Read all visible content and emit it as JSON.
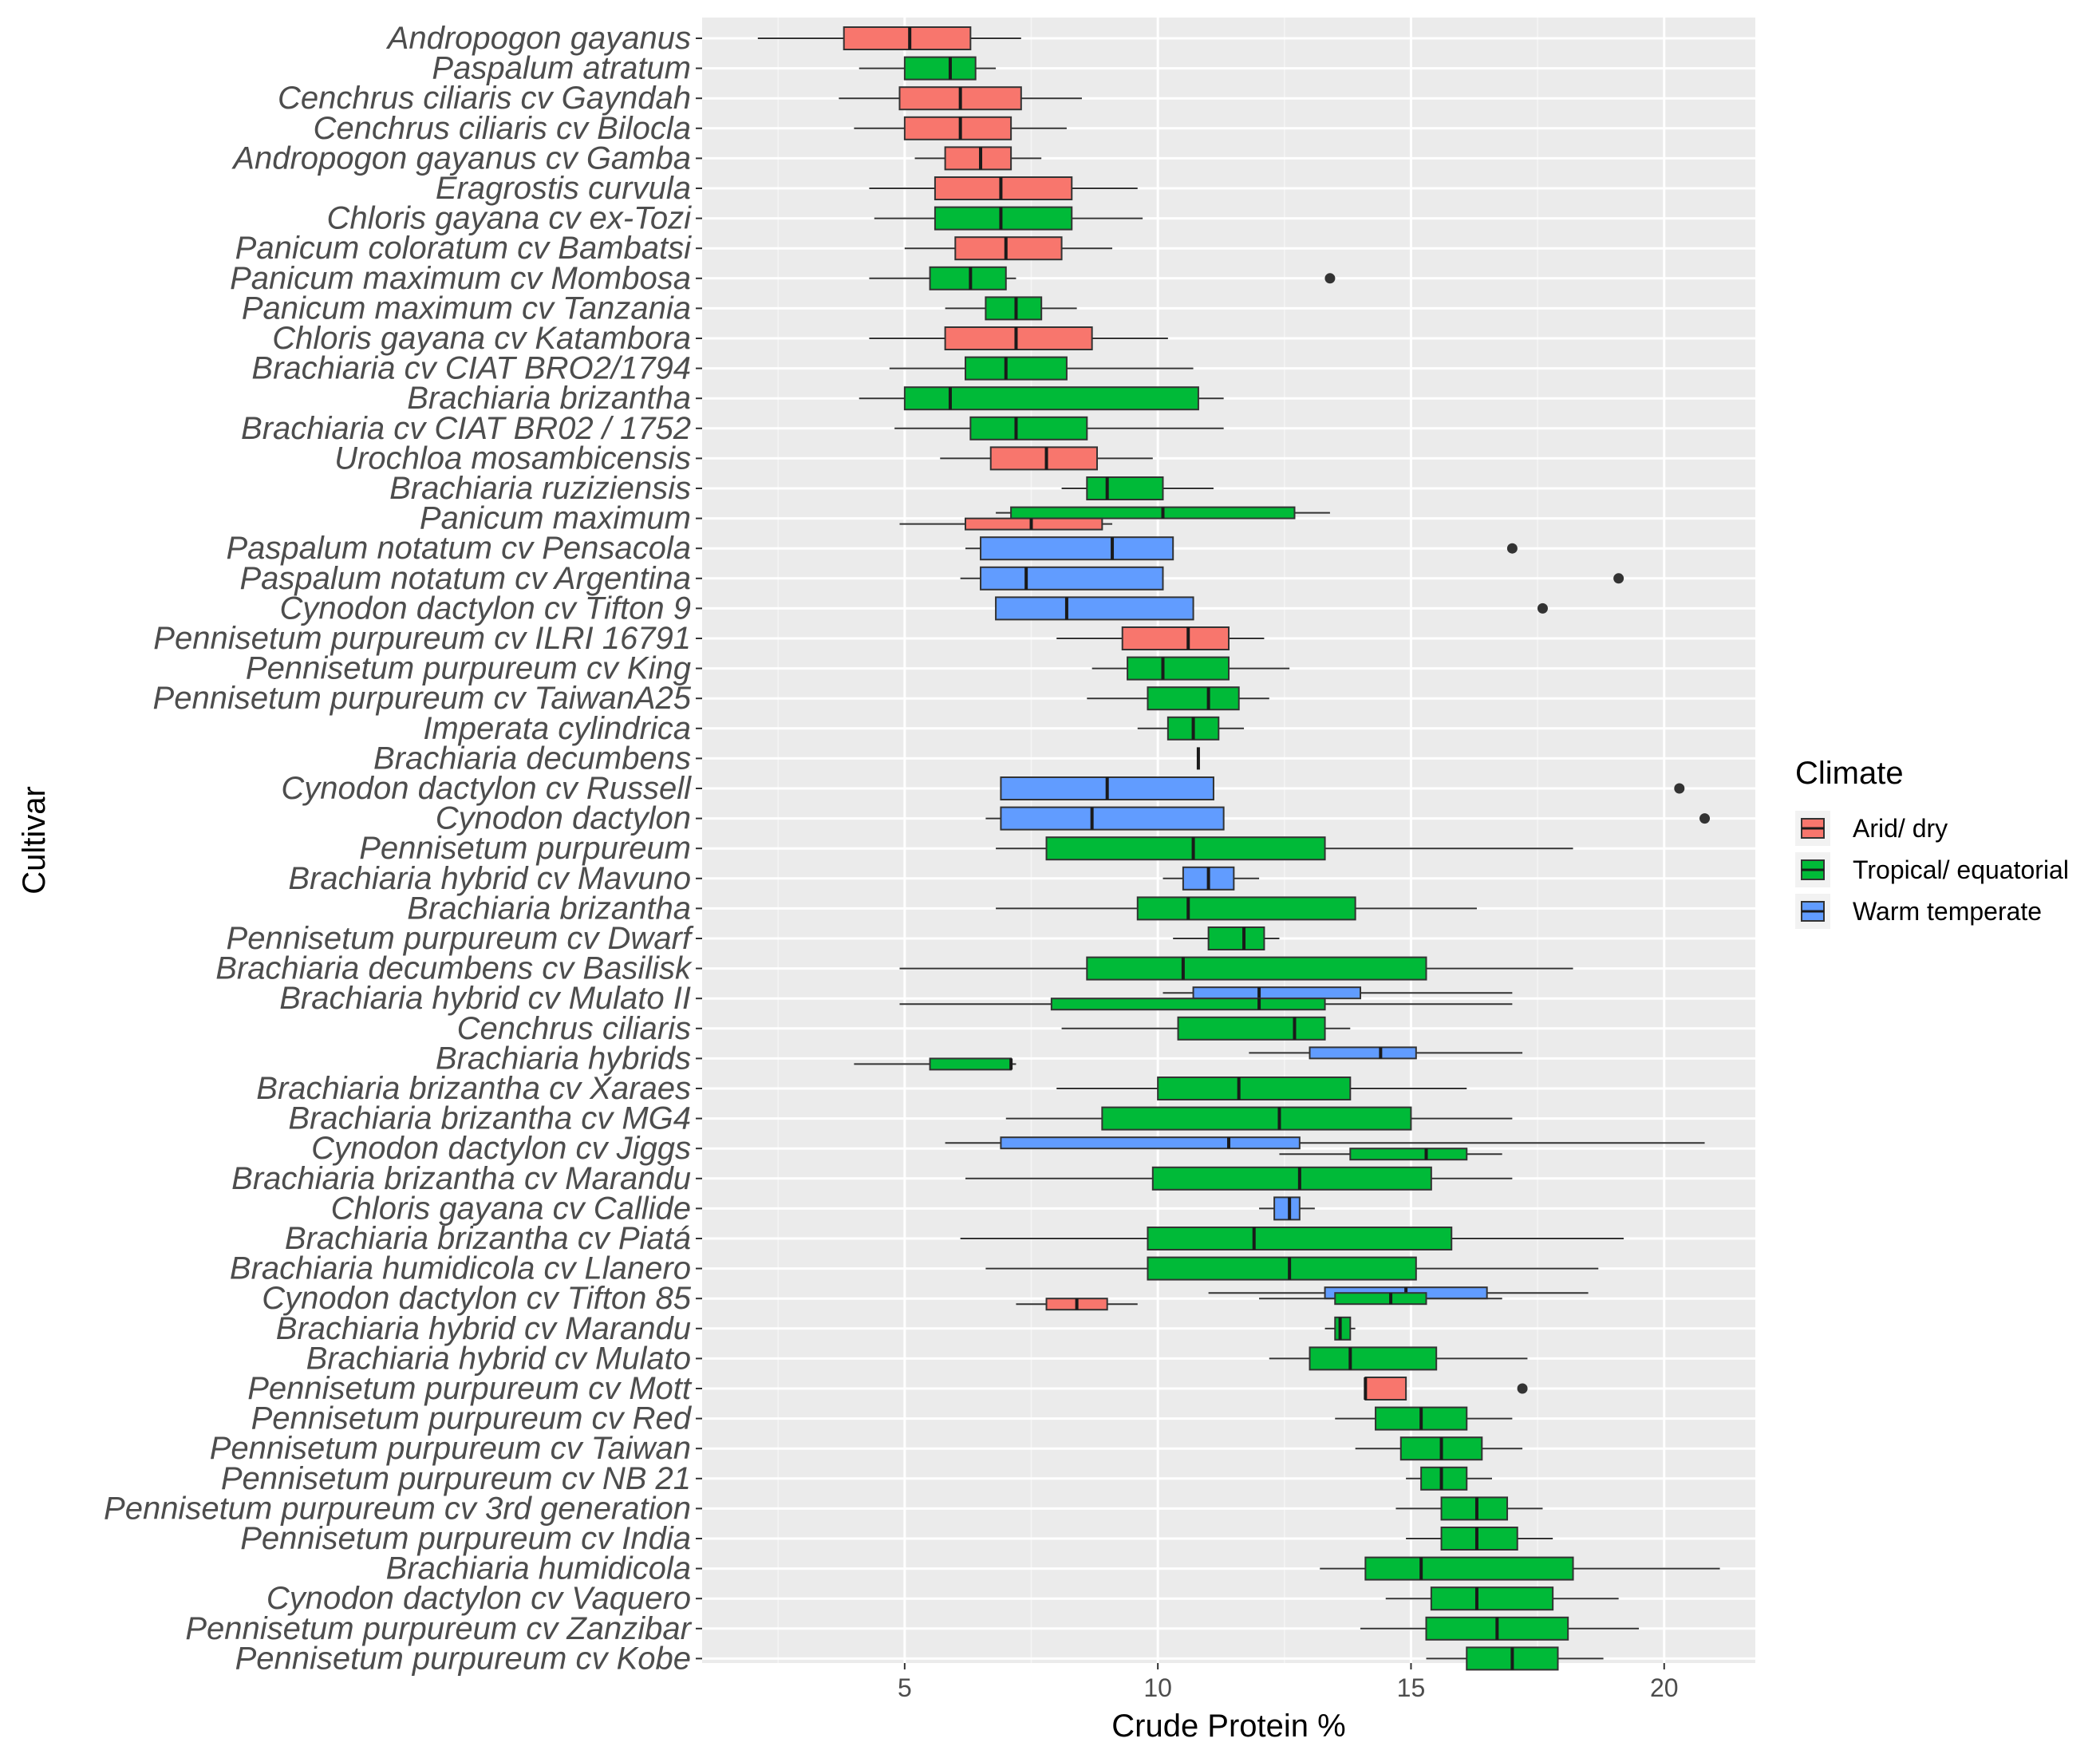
{
  "chart_data": {
    "type": "boxplot",
    "orientation": "horizontal",
    "xlabel": "Crude Protein %",
    "ylabel": "Cultivar",
    "xlim": [
      1.0,
      21.8
    ],
    "xticks": [
      5,
      10,
      15,
      20
    ],
    "grid": true,
    "legend": {
      "title": "Climate",
      "placement": "right",
      "entries": [
        {
          "key": "arid",
          "label": "Arid/ dry",
          "color": "#F8766D"
        },
        {
          "key": "tropical",
          "label": "Tropical/ equatorial",
          "color": "#00BA38"
        },
        {
          "key": "warm",
          "label": "Warm temperate",
          "color": "#619CFF"
        }
      ]
    },
    "colors": {
      "panel": "#EBEBEB",
      "grid_major": "#FFFFFF",
      "grid_minor": "#F5F5F5",
      "whisker": "#333333",
      "outline": "#333333",
      "outlier": "#333333",
      "tick_text": "#4D4D4D"
    },
    "categories": [
      {
        "label": "Andropogon gayanus",
        "boxes": [
          {
            "climate": "arid",
            "min": 2.1,
            "q1": 3.8,
            "median": 5.1,
            "q3": 6.3,
            "max": 7.3
          }
        ]
      },
      {
        "label": "Paspalum atratum",
        "boxes": [
          {
            "climate": "tropical",
            "min": 4.1,
            "q1": 5.0,
            "median": 5.9,
            "q3": 6.4,
            "max": 6.8
          }
        ]
      },
      {
        "label": "Cenchrus ciliaris cv Gayndah",
        "boxes": [
          {
            "climate": "arid",
            "min": 3.7,
            "q1": 4.9,
            "median": 6.1,
            "q3": 7.3,
            "max": 8.5
          }
        ]
      },
      {
        "label": "Cenchrus ciliaris cv Bilocla",
        "boxes": [
          {
            "climate": "arid",
            "min": 4.0,
            "q1": 5.0,
            "median": 6.1,
            "q3": 7.1,
            "max": 8.2
          }
        ]
      },
      {
        "label": "Andropogon gayanus cv Gamba",
        "boxes": [
          {
            "climate": "arid",
            "min": 5.2,
            "q1": 5.8,
            "median": 6.5,
            "q3": 7.1,
            "max": 7.7
          }
        ]
      },
      {
        "label": "Eragrostis curvula",
        "boxes": [
          {
            "climate": "arid",
            "min": 4.3,
            "q1": 5.6,
            "median": 6.9,
            "q3": 8.3,
            "max": 9.6
          }
        ]
      },
      {
        "label": "Chloris gayana cv ex-Tozi",
        "boxes": [
          {
            "climate": "tropical",
            "min": 4.4,
            "q1": 5.6,
            "median": 6.9,
            "q3": 8.3,
            "max": 9.7
          }
        ]
      },
      {
        "label": "Panicum coloratum cv Bambatsi",
        "boxes": [
          {
            "climate": "arid",
            "min": 5.0,
            "q1": 6.0,
            "median": 7.0,
            "q3": 8.1,
            "max": 9.1
          }
        ]
      },
      {
        "label": "Panicum maximum cv Mombosa",
        "boxes": [
          {
            "climate": "tropical",
            "min": 4.3,
            "q1": 5.5,
            "median": 6.3,
            "q3": 7.0,
            "max": 7.2,
            "outliers": [
              13.4
            ]
          }
        ]
      },
      {
        "label": "Panicum maximum cv Tanzania",
        "boxes": [
          {
            "climate": "tropical",
            "min": 5.8,
            "q1": 6.6,
            "median": 7.2,
            "q3": 7.7,
            "max": 8.4
          }
        ]
      },
      {
        "label": "Chloris gayana cv Katambora",
        "boxes": [
          {
            "climate": "arid",
            "min": 4.3,
            "q1": 5.8,
            "median": 7.2,
            "q3": 8.7,
            "max": 10.2
          }
        ]
      },
      {
        "label": "Brachiaria cv CIAT BRO2/1794",
        "boxes": [
          {
            "climate": "tropical",
            "min": 4.7,
            "q1": 6.2,
            "median": 7.0,
            "q3": 8.2,
            "max": 10.7
          }
        ]
      },
      {
        "label": "Brachiaria brizantha",
        "boxes": [
          {
            "climate": "tropical",
            "min": 4.1,
            "q1": 5.0,
            "median": 5.9,
            "q3": 10.8,
            "max": 11.3
          }
        ]
      },
      {
        "label": "Brachiaria cv  CIAT BR02 / 1752",
        "boxes": [
          {
            "climate": "tropical",
            "min": 4.8,
            "q1": 6.3,
            "median": 7.2,
            "q3": 8.6,
            "max": 11.3
          }
        ]
      },
      {
        "label": "Urochloa mosambicensis",
        "boxes": [
          {
            "climate": "arid",
            "min": 5.7,
            "q1": 6.7,
            "median": 7.8,
            "q3": 8.8,
            "max": 9.9
          }
        ]
      },
      {
        "label": "Brachiaria ruziziensis",
        "boxes": [
          {
            "climate": "tropical",
            "min": 8.1,
            "q1": 8.6,
            "median": 9.0,
            "q3": 10.1,
            "max": 11.1
          }
        ]
      },
      {
        "label": "Panicum maximum ",
        "boxes": [
          {
            "climate": "tropical",
            "offset": -1,
            "min": 6.8,
            "q1": 7.1,
            "median": 10.1,
            "q3": 12.7,
            "max": 13.4
          },
          {
            "climate": "arid",
            "offset": 1,
            "min": 4.9,
            "q1": 6.2,
            "median": 7.5,
            "q3": 8.9,
            "max": 9.1
          }
        ]
      },
      {
        "label": "Paspalum notatum cv Pensacola",
        "boxes": [
          {
            "climate": "warm",
            "min": 6.2,
            "q1": 6.5,
            "median": 9.1,
            "q3": 10.3,
            "max": 10.3,
            "outliers": [
              17.0
            ]
          }
        ]
      },
      {
        "label": "Paspalum notatum cv Argentina",
        "boxes": [
          {
            "climate": "warm",
            "min": 6.1,
            "q1": 6.5,
            "median": 7.4,
            "q3": 10.1,
            "max": 10.1,
            "outliers": [
              19.1
            ]
          }
        ]
      },
      {
        "label": "Cynodon dactylon cv Tifton 9",
        "boxes": [
          {
            "climate": "warm",
            "min": 6.8,
            "q1": 6.8,
            "median": 8.2,
            "q3": 10.7,
            "max": 10.7,
            "outliers": [
              17.6
            ]
          }
        ]
      },
      {
        "label": "Pennisetum purpureum cv ILRI  16791",
        "boxes": [
          {
            "climate": "arid",
            "min": 8.0,
            "q1": 9.3,
            "median": 10.6,
            "q3": 11.4,
            "max": 12.1
          }
        ]
      },
      {
        "label": "Pennisetum purpureum cv King",
        "boxes": [
          {
            "climate": "tropical",
            "min": 8.7,
            "q1": 9.4,
            "median": 10.1,
            "q3": 11.4,
            "max": 12.6
          }
        ]
      },
      {
        "label": "Pennisetum purpureum cv TaiwanA25",
        "boxes": [
          {
            "climate": "tropical",
            "min": 8.6,
            "q1": 9.8,
            "median": 11.0,
            "q3": 11.6,
            "max": 12.2
          }
        ]
      },
      {
        "label": "Imperata cylindrica",
        "boxes": [
          {
            "climate": "tropical",
            "min": 9.6,
            "q1": 10.2,
            "median": 10.7,
            "q3": 11.2,
            "max": 11.7
          }
        ]
      },
      {
        "label": "Brachiaria decumbens",
        "boxes": [
          {
            "climate": "tropical",
            "min": 10.8,
            "q1": 10.8,
            "median": 10.8,
            "q3": 10.8,
            "max": 10.8
          }
        ]
      },
      {
        "label": "Cynodon dactylon cv Russell",
        "boxes": [
          {
            "climate": "warm",
            "min": 6.9,
            "q1": 6.9,
            "median": 9.0,
            "q3": 11.1,
            "max": 11.1,
            "outliers": [
              20.3
            ]
          }
        ]
      },
      {
        "label": "Cynodon dactylon",
        "boxes": [
          {
            "climate": "warm",
            "min": 6.6,
            "q1": 6.9,
            "median": 8.7,
            "q3": 11.3,
            "max": 11.3,
            "outliers": [
              20.8
            ]
          }
        ]
      },
      {
        "label": "Pennisetum purpureum",
        "boxes": [
          {
            "climate": "tropical",
            "min": 6.8,
            "q1": 7.8,
            "median": 10.7,
            "q3": 13.3,
            "max": 18.2
          }
        ]
      },
      {
        "label": "Brachiaria hybrid cv Mavuno",
        "boxes": [
          {
            "climate": "warm",
            "min": 10.1,
            "q1": 10.5,
            "median": 11.0,
            "q3": 11.5,
            "max": 12.0
          }
        ]
      },
      {
        "label": "Brachiaria brizantha ",
        "boxes": [
          {
            "climate": "tropical",
            "min": 6.8,
            "q1": 9.6,
            "median": 10.6,
            "q3": 13.9,
            "max": 16.3
          }
        ]
      },
      {
        "label": "Pennisetum purpureum cv Dwarf",
        "boxes": [
          {
            "climate": "tropical",
            "min": 10.3,
            "q1": 11.0,
            "median": 11.7,
            "q3": 12.1,
            "max": 12.4
          }
        ]
      },
      {
        "label": "Brachiaria decumbens cv Basilisk",
        "boxes": [
          {
            "climate": "tropical",
            "min": 4.9,
            "q1": 8.6,
            "median": 10.5,
            "q3": 15.3,
            "max": 18.2
          }
        ]
      },
      {
        "label": "Brachiaria hybrid cv Mulato II",
        "boxes": [
          {
            "climate": "warm",
            "offset": -1,
            "min": 10.1,
            "q1": 10.7,
            "median": 12.0,
            "q3": 14.0,
            "max": 17.0
          },
          {
            "climate": "tropical",
            "offset": 1,
            "min": 4.9,
            "q1": 7.9,
            "median": 12.0,
            "q3": 13.3,
            "max": 17.0
          }
        ]
      },
      {
        "label": "Cenchrus ciliaris",
        "boxes": [
          {
            "climate": "tropical",
            "min": 8.1,
            "q1": 10.4,
            "median": 12.7,
            "q3": 13.3,
            "max": 13.8
          }
        ]
      },
      {
        "label": "Brachiaria hybrids",
        "boxes": [
          {
            "climate": "warm",
            "offset": -1,
            "min": 11.8,
            "q1": 13.0,
            "median": 14.4,
            "q3": 15.1,
            "max": 17.2
          },
          {
            "climate": "tropical",
            "offset": 1,
            "min": 4.0,
            "q1": 5.5,
            "median": 7.1,
            "q3": 7.1,
            "max": 7.2
          }
        ]
      },
      {
        "label": "Brachiaria brizantha cv Xaraes",
        "boxes": [
          {
            "climate": "tropical",
            "min": 8.0,
            "q1": 10.0,
            "median": 11.6,
            "q3": 13.8,
            "max": 16.1
          }
        ]
      },
      {
        "label": "Brachiaria brizantha cv MG4",
        "boxes": [
          {
            "climate": "tropical",
            "min": 7.0,
            "q1": 8.9,
            "median": 12.4,
            "q3": 15.0,
            "max": 17.0
          }
        ]
      },
      {
        "label": "Cynodon dactylon cv Jiggs",
        "boxes": [
          {
            "climate": "warm",
            "offset": -1,
            "min": 5.8,
            "q1": 6.9,
            "median": 11.4,
            "q3": 12.8,
            "max": 20.8
          },
          {
            "climate": "tropical",
            "offset": 1,
            "min": 12.4,
            "q1": 13.8,
            "median": 15.3,
            "q3": 16.1,
            "max": 16.8
          }
        ]
      },
      {
        "label": "Brachiaria brizantha cv Marandu",
        "boxes": [
          {
            "climate": "tropical",
            "min": 6.2,
            "q1": 9.9,
            "median": 12.8,
            "q3": 15.4,
            "max": 17.0
          }
        ]
      },
      {
        "label": "Chloris gayana cv Callide",
        "boxes": [
          {
            "climate": "warm",
            "min": 12.0,
            "q1": 12.3,
            "median": 12.6,
            "q3": 12.8,
            "max": 13.1
          }
        ]
      },
      {
        "label": "Brachiaria brizantha cv Piatá",
        "boxes": [
          {
            "climate": "tropical",
            "min": 6.1,
            "q1": 9.8,
            "median": 11.9,
            "q3": 15.8,
            "max": 19.2
          }
        ]
      },
      {
        "label": "Brachiaria humidicola cv Llanero",
        "boxes": [
          {
            "climate": "tropical",
            "min": 6.6,
            "q1": 9.8,
            "median": 12.6,
            "q3": 15.1,
            "max": 18.7
          }
        ]
      },
      {
        "label": "Cynodon dactylon cv Tifton 85",
        "boxes": [
          {
            "climate": "warm",
            "offset": -1,
            "min": 11.0,
            "q1": 13.3,
            "median": 14.9,
            "q3": 16.5,
            "max": 18.5
          },
          {
            "climate": "tropical",
            "offset": 0,
            "min": 12.0,
            "q1": 13.5,
            "median": 14.6,
            "q3": 15.3,
            "max": 16.8
          },
          {
            "climate": "arid",
            "offset": 1,
            "min": 7.2,
            "q1": 7.8,
            "median": 8.4,
            "q3": 9.0,
            "max": 9.6
          }
        ]
      },
      {
        "label": "Brachiaria hybrid cv Marandu",
        "boxes": [
          {
            "climate": "tropical",
            "min": 13.3,
            "q1": 13.5,
            "median": 13.6,
            "q3": 13.8,
            "max": 13.9
          }
        ]
      },
      {
        "label": "Brachiaria hybrid cv Mulato ",
        "boxes": [
          {
            "climate": "tropical",
            "min": 12.2,
            "q1": 13.0,
            "median": 13.8,
            "q3": 15.5,
            "max": 17.3
          }
        ]
      },
      {
        "label": "Pennisetum purpureum cv Mott",
        "boxes": [
          {
            "climate": "arid",
            "min": 14.1,
            "q1": 14.1,
            "median": 14.1,
            "q3": 14.9,
            "max": 14.9,
            "outliers": [
              17.2
            ]
          }
        ]
      },
      {
        "label": "Pennisetum purpureum cv Red",
        "boxes": [
          {
            "climate": "tropical",
            "min": 13.5,
            "q1": 14.3,
            "median": 15.2,
            "q3": 16.1,
            "max": 17.0
          }
        ]
      },
      {
        "label": "Pennisetum purpureum cv Taiwan",
        "boxes": [
          {
            "climate": "tropical",
            "min": 13.9,
            "q1": 14.8,
            "median": 15.6,
            "q3": 16.4,
            "max": 17.2
          }
        ]
      },
      {
        "label": "Pennisetum purpureum cv NB 21",
        "boxes": [
          {
            "climate": "tropical",
            "min": 14.9,
            "q1": 15.2,
            "median": 15.6,
            "q3": 16.1,
            "max": 16.6
          }
        ]
      },
      {
        "label": "Pennisetum purpureum cv 3rd generation",
        "boxes": [
          {
            "climate": "tropical",
            "min": 14.7,
            "q1": 15.6,
            "median": 16.3,
            "q3": 16.9,
            "max": 17.6
          }
        ]
      },
      {
        "label": "Pennisetum purpureum cv India",
        "boxes": [
          {
            "climate": "tropical",
            "min": 14.9,
            "q1": 15.6,
            "median": 16.3,
            "q3": 17.1,
            "max": 17.8
          }
        ]
      },
      {
        "label": "Brachiaria humidicola ",
        "boxes": [
          {
            "climate": "tropical",
            "min": 13.2,
            "q1": 14.1,
            "median": 15.2,
            "q3": 18.2,
            "max": 21.1
          }
        ]
      },
      {
        "label": "Cynodon dactylon cv Vaquero",
        "boxes": [
          {
            "climate": "tropical",
            "min": 14.5,
            "q1": 15.4,
            "median": 16.3,
            "q3": 17.8,
            "max": 19.1
          }
        ]
      },
      {
        "label": "Pennisetum purpureum cv Zanzibar",
        "boxes": [
          {
            "climate": "tropical",
            "min": 14.0,
            "q1": 15.3,
            "median": 16.7,
            "q3": 18.1,
            "max": 19.5
          }
        ]
      },
      {
        "label": "Pennisetum purpureum cv Kobe",
        "boxes": [
          {
            "climate": "tropical",
            "min": 15.3,
            "q1": 16.1,
            "median": 17.0,
            "q3": 17.9,
            "max": 18.8
          }
        ]
      }
    ]
  }
}
